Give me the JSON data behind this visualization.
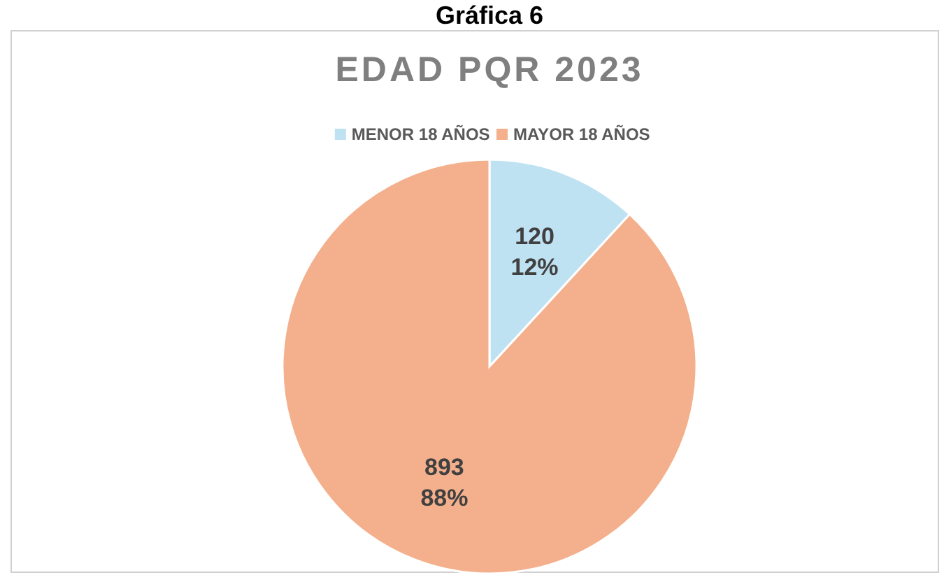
{
  "chart_data": {
    "type": "pie",
    "title": "EDAD PQR 2023",
    "annotations": [
      "Gráfica 6"
    ],
    "categories": [
      "MENOR 18 AÑOS",
      "MAYOR 18 AÑOS"
    ],
    "values": [
      120,
      893
    ],
    "colors": [
      "#bfe2f2",
      "#f4b08c"
    ],
    "value_labels": [
      "120\n12%",
      "893\n88%"
    ],
    "legend": "top"
  }
}
